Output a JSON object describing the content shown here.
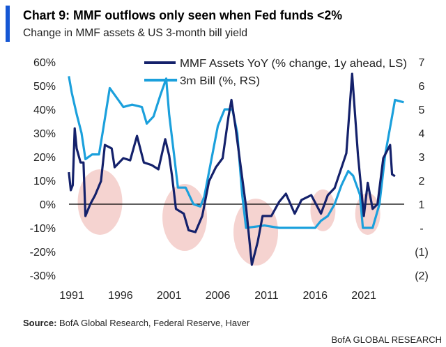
{
  "chart_data": {
    "type": "line",
    "title": "Chart 9: MMF outflows only seen when Fed funds <2%",
    "subtitle": "Change in MMF assets & US 3-month bill yield",
    "source_label": "Source:",
    "source_text": " BofA Global Research, Federal Reserve, Haver",
    "brand": "BofA GLOBAL RESEARCH",
    "x_ticks": [
      "1991",
      "1996",
      "2001",
      "2006",
      "2011",
      "2016",
      "2021"
    ],
    "y_left_ticks": [
      "60%",
      "50%",
      "40%",
      "30%",
      "20%",
      "10%",
      "0%",
      "-10%",
      "-20%",
      "-30%"
    ],
    "y_left_range": [
      -30,
      60
    ],
    "y_right_ticks": [
      "7",
      "6",
      "5",
      "4",
      "3",
      "2",
      "1",
      "-",
      "(1)",
      "(2)"
    ],
    "y_right_range": [
      -2,
      7
    ],
    "x_range": [
      1990.7,
      2025.3
    ],
    "legend_placement": "top",
    "series": [
      {
        "name": "MMF Assets YoY (% change, 1y ahead, LS)",
        "axis": "left",
        "color": "#14216b",
        "points": [
          [
            1990.7,
            13.5
          ],
          [
            1990.9,
            5.9
          ],
          [
            1991.1,
            8
          ],
          [
            1991.3,
            32
          ],
          [
            1991.5,
            23.5
          ],
          [
            1991.9,
            17.6
          ],
          [
            1992.2,
            17.6
          ],
          [
            1992.4,
            -5
          ],
          [
            1992.9,
            0
          ],
          [
            1993.4,
            3.8
          ],
          [
            1994.0,
            9.7
          ],
          [
            1994.4,
            25
          ],
          [
            1995.1,
            23.5
          ],
          [
            1995.4,
            15.6
          ],
          [
            1996.3,
            19.4
          ],
          [
            1997.0,
            18.5
          ],
          [
            1997.7,
            28.8
          ],
          [
            1998.4,
            17.6
          ],
          [
            1999.2,
            16.5
          ],
          [
            1999.9,
            14.7
          ],
          [
            2000.6,
            27.4
          ],
          [
            2001.0,
            20.6
          ],
          [
            2001.3,
            11.8
          ],
          [
            2001.7,
            -2
          ],
          [
            2002.5,
            -4
          ],
          [
            2003.0,
            -11
          ],
          [
            2003.7,
            -11.8
          ],
          [
            2004.4,
            -5
          ],
          [
            2005.1,
            9.7
          ],
          [
            2005.8,
            15.6
          ],
          [
            2006.5,
            19.4
          ],
          [
            2007.1,
            37
          ],
          [
            2007.4,
            44
          ],
          [
            2007.8,
            33
          ],
          [
            2008.2,
            20.6
          ],
          [
            2008.9,
            -1.2
          ],
          [
            2009.5,
            -25.6
          ],
          [
            2010.1,
            -15.9
          ],
          [
            2010.6,
            -5
          ],
          [
            2011.5,
            -5
          ],
          [
            2012.3,
            1
          ],
          [
            2013.0,
            4.4
          ],
          [
            2013.9,
            -4
          ],
          [
            2014.6,
            1.8
          ],
          [
            2015.6,
            3.8
          ],
          [
            2016.6,
            -4
          ],
          [
            2017.3,
            3.8
          ],
          [
            2018.0,
            6.8
          ],
          [
            2019.2,
            21.5
          ],
          [
            2019.8,
            55
          ],
          [
            2020.4,
            20.6
          ],
          [
            2021.0,
            -5
          ],
          [
            2021.4,
            9
          ],
          [
            2021.9,
            -2
          ],
          [
            2022.4,
            0
          ],
          [
            2023.0,
            19.4
          ],
          [
            2023.7,
            25
          ],
          [
            2023.9,
            12.6
          ],
          [
            2024.2,
            11.8
          ]
        ]
      },
      {
        "name": "3m Bill (%, RS)",
        "axis": "right",
        "color": "#1ba0dc",
        "points": [
          [
            1990.7,
            6.4
          ],
          [
            1991.0,
            5.7
          ],
          [
            1991.5,
            4.8
          ],
          [
            1992.0,
            4.0
          ],
          [
            1992.4,
            2.9
          ],
          [
            1993.1,
            3.1
          ],
          [
            1993.8,
            3.1
          ],
          [
            1994.2,
            4.1
          ],
          [
            1994.9,
            5.9
          ],
          [
            1995.6,
            5.5
          ],
          [
            1996.3,
            5.1
          ],
          [
            1997.2,
            5.2
          ],
          [
            1998.2,
            5.1
          ],
          [
            1998.7,
            4.4
          ],
          [
            1999.4,
            4.7
          ],
          [
            2000.1,
            5.6
          ],
          [
            2000.7,
            6.3
          ],
          [
            2001.0,
            4.8
          ],
          [
            2001.5,
            3.1
          ],
          [
            2001.9,
            1.7
          ],
          [
            2002.7,
            1.7
          ],
          [
            2003.5,
            1.0
          ],
          [
            2004.2,
            0.9
          ],
          [
            2004.6,
            1.3
          ],
          [
            2005.3,
            2.8
          ],
          [
            2006.0,
            4.3
          ],
          [
            2006.7,
            5.0
          ],
          [
            2007.5,
            5.0
          ],
          [
            2008.0,
            4.0
          ],
          [
            2008.5,
            1.4
          ],
          [
            2008.9,
            0.0
          ],
          [
            2010.8,
            0.1
          ],
          [
            2012.3,
            0.0
          ],
          [
            2016.0,
            0.0
          ],
          [
            2016.6,
            0.3
          ],
          [
            2017.3,
            0.5
          ],
          [
            2018.0,
            1.0
          ],
          [
            2018.7,
            1.8
          ],
          [
            2019.4,
            2.4
          ],
          [
            2019.9,
            2.2
          ],
          [
            2020.6,
            1.4
          ],
          [
            2020.9,
            0.0
          ],
          [
            2021.9,
            0.0
          ],
          [
            2022.6,
            1.0
          ],
          [
            2023.2,
            3.1
          ],
          [
            2023.9,
            4.7
          ],
          [
            2024.2,
            5.4
          ],
          [
            2025.1,
            5.3
          ]
        ]
      }
    ],
    "highlight_color": "#f2c4c0"
  }
}
